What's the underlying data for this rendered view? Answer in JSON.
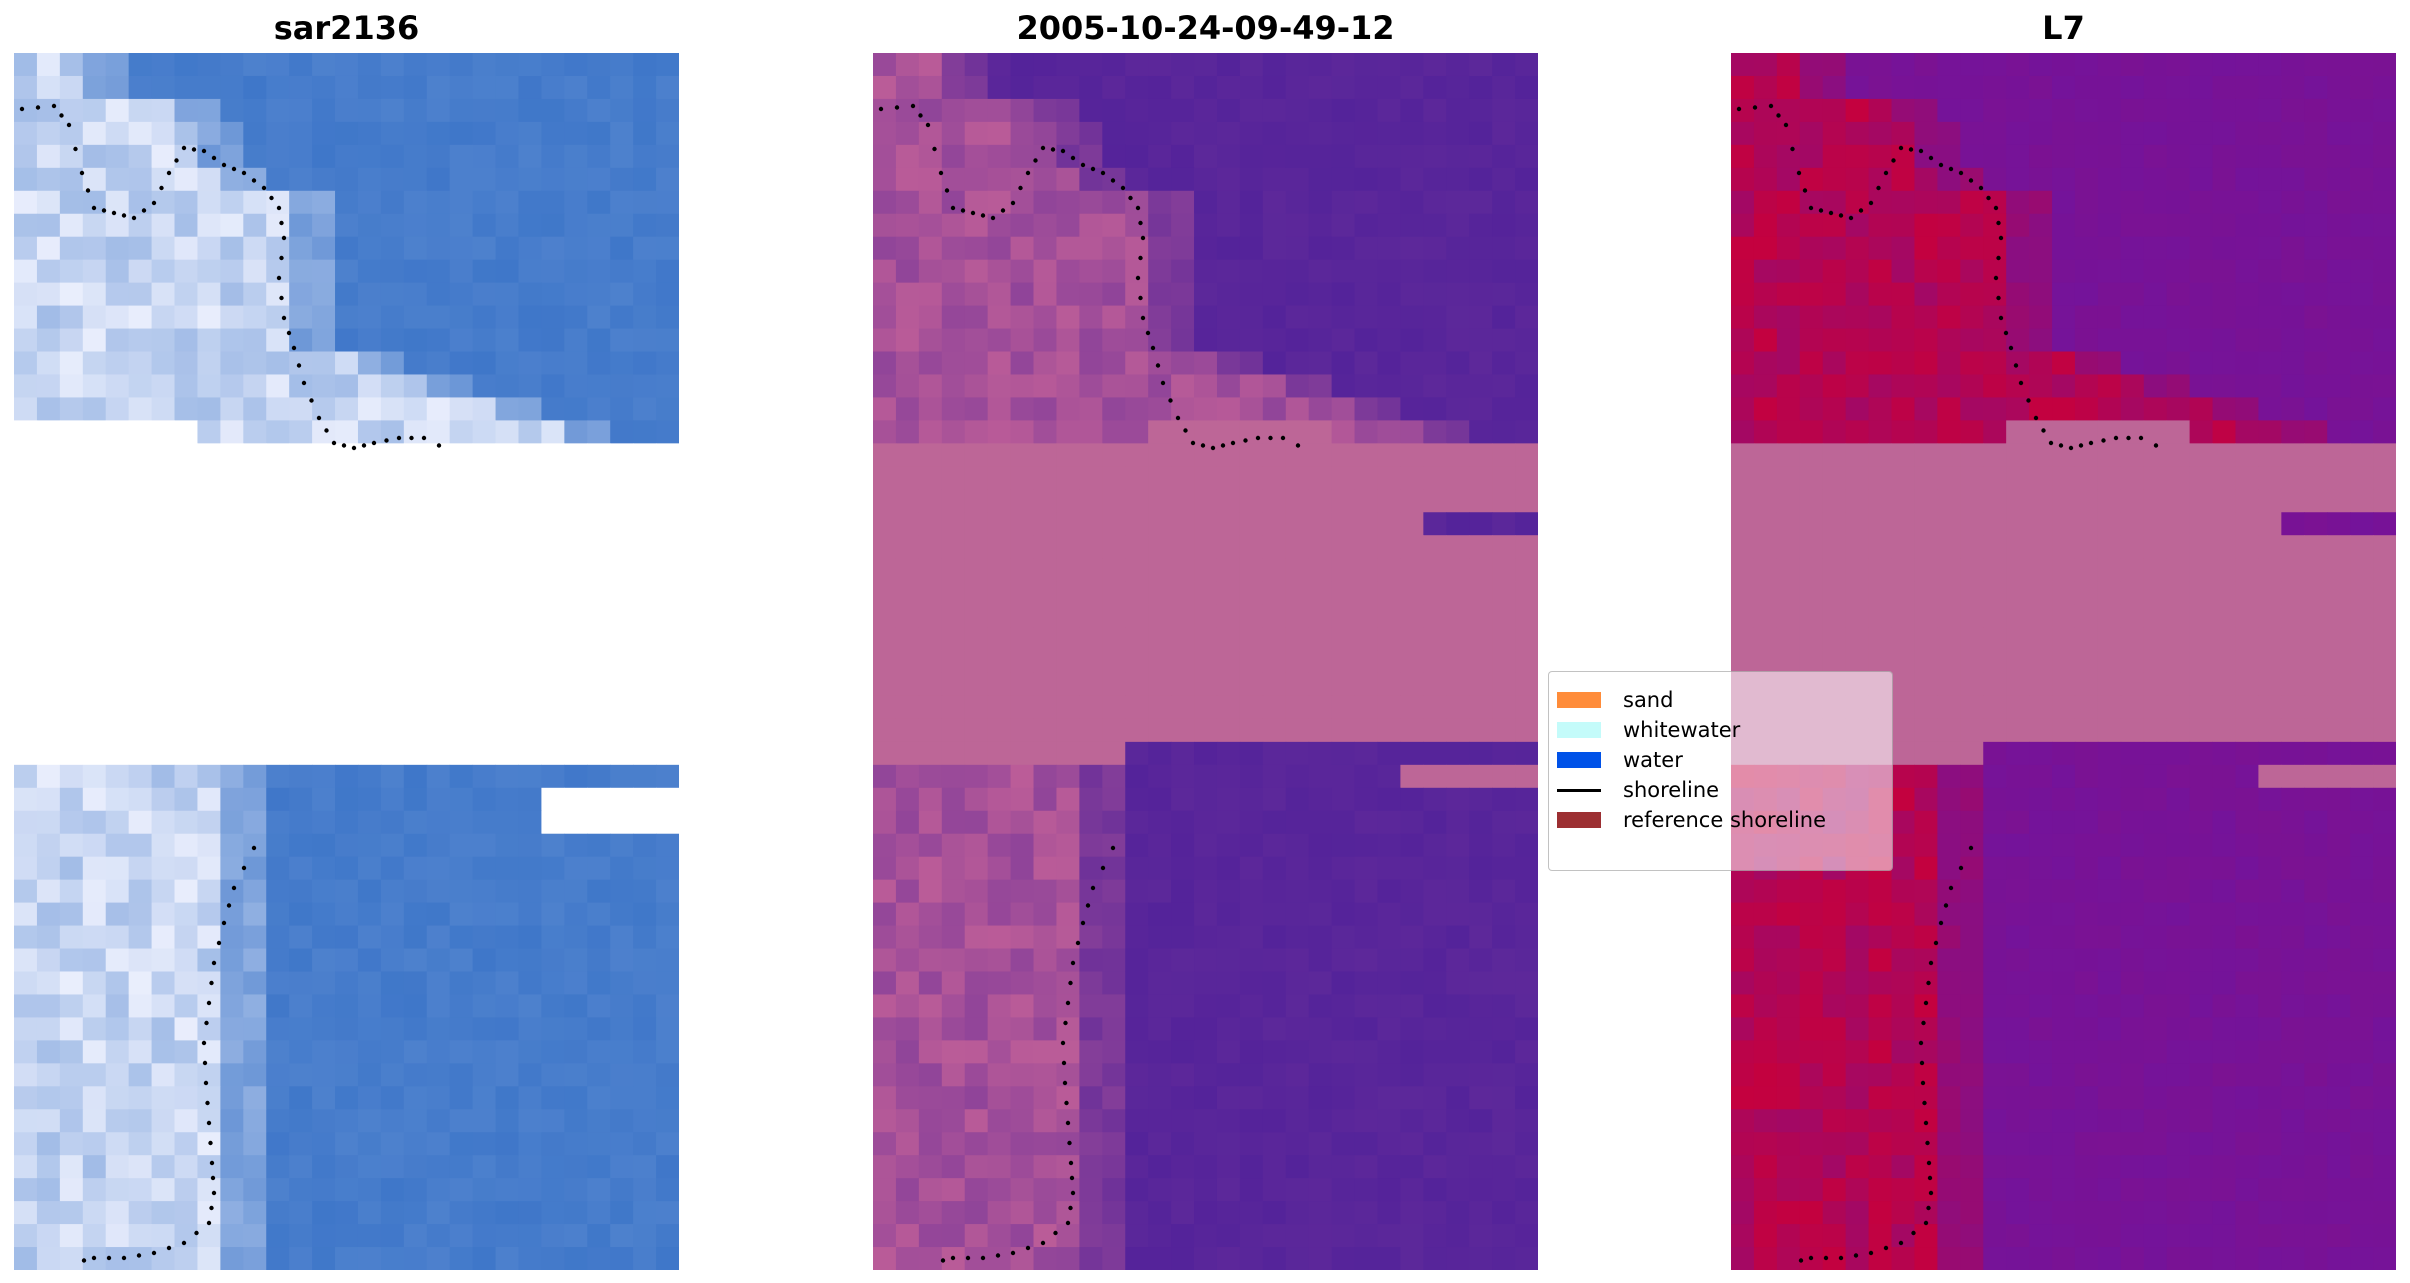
{
  "panels": [
    {
      "title": "sar2136",
      "colors": {
        "a": "#3f77c9",
        "b": "#f2f4ff",
        "void": "#ffffff"
      }
    },
    {
      "title": "2005-10-24-09-49-12",
      "colors": {
        "a": "#54239a",
        "b": "#c05f98",
        "band": "#bd6697"
      }
    },
    {
      "title": "L7",
      "colors": {
        "a": "#74139a",
        "b": "#c8003a",
        "band": "#bd6697"
      }
    }
  ],
  "legend": {
    "items": [
      {
        "label": "sand",
        "color": "#ff8c3a"
      },
      {
        "label": "whitewater",
        "color": "#c4fbfa"
      },
      {
        "label": "water",
        "color": "#0052e8"
      },
      {
        "label": "shoreline",
        "color": "#000000"
      },
      {
        "label": "reference shoreline",
        "color": "#9c2f32"
      }
    ]
  }
}
